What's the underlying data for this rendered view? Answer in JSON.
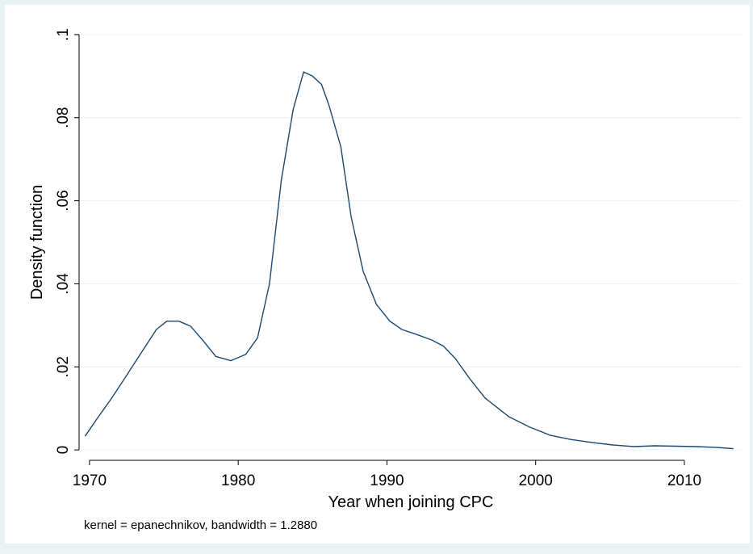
{
  "chart_data": {
    "type": "line",
    "title": "",
    "xlabel": "Year when joining CPC",
    "ylabel": "Density function",
    "note": "kernel = epanechnikov, bandwidth = 1.2880",
    "xlim": [
      1969.3,
      2013.8
    ],
    "ylim": [
      -0.0025,
      0.1025
    ],
    "xticks": [
      1970,
      1980,
      1990,
      2000,
      2010
    ],
    "xtick_labels": [
      "1970",
      "1980",
      "1990",
      "2000",
      "2010"
    ],
    "yticks": [
      0,
      0.02,
      0.04,
      0.06,
      0.08,
      0.1
    ],
    "ytick_labels": [
      "0",
      ".02",
      ".04",
      ".06",
      ".08",
      ".1"
    ],
    "grid": true,
    "series": [
      {
        "x": [
          1969.7,
          1970.5,
          1971.5,
          1972.5,
          1973.5,
          1974.5,
          1975.2,
          1976.0,
          1976.8,
          1977.6,
          1978.5,
          1979.5,
          1980.5,
          1981.3,
          1982.1,
          1982.9,
          1983.7,
          1984.4,
          1985.0,
          1985.6,
          1986.1,
          1986.9,
          1987.6,
          1988.4,
          1989.3,
          1990.2,
          1991.0,
          1992.0,
          1993.0,
          1993.8,
          1994.6,
          1995.6,
          1996.6,
          1998.2,
          1999.6,
          2001.0,
          2002.4,
          2003.8,
          2005.2,
          2006.6,
          2008.0,
          2009.4,
          2010.8,
          2012.2,
          2013.3
        ],
        "y": [
          0.0033,
          0.0075,
          0.0125,
          0.018,
          0.0235,
          0.029,
          0.031,
          0.031,
          0.0298,
          0.0265,
          0.0225,
          0.0215,
          0.023,
          0.027,
          0.04,
          0.065,
          0.082,
          0.091,
          0.09,
          0.088,
          0.083,
          0.073,
          0.056,
          0.043,
          0.035,
          0.031,
          0.029,
          0.0278,
          0.0265,
          0.025,
          0.022,
          0.017,
          0.0125,
          0.008,
          0.0055,
          0.0035,
          0.0025,
          0.0018,
          0.0012,
          0.0008,
          0.001,
          0.0009,
          0.0008,
          0.0006,
          0.0003
        ]
      }
    ]
  },
  "colors": {
    "background": "#eaf2f3",
    "plot_background": "#ffffff",
    "line": "#1a476f",
    "grid": "#eaf2f3",
    "axis": "#000000"
  }
}
